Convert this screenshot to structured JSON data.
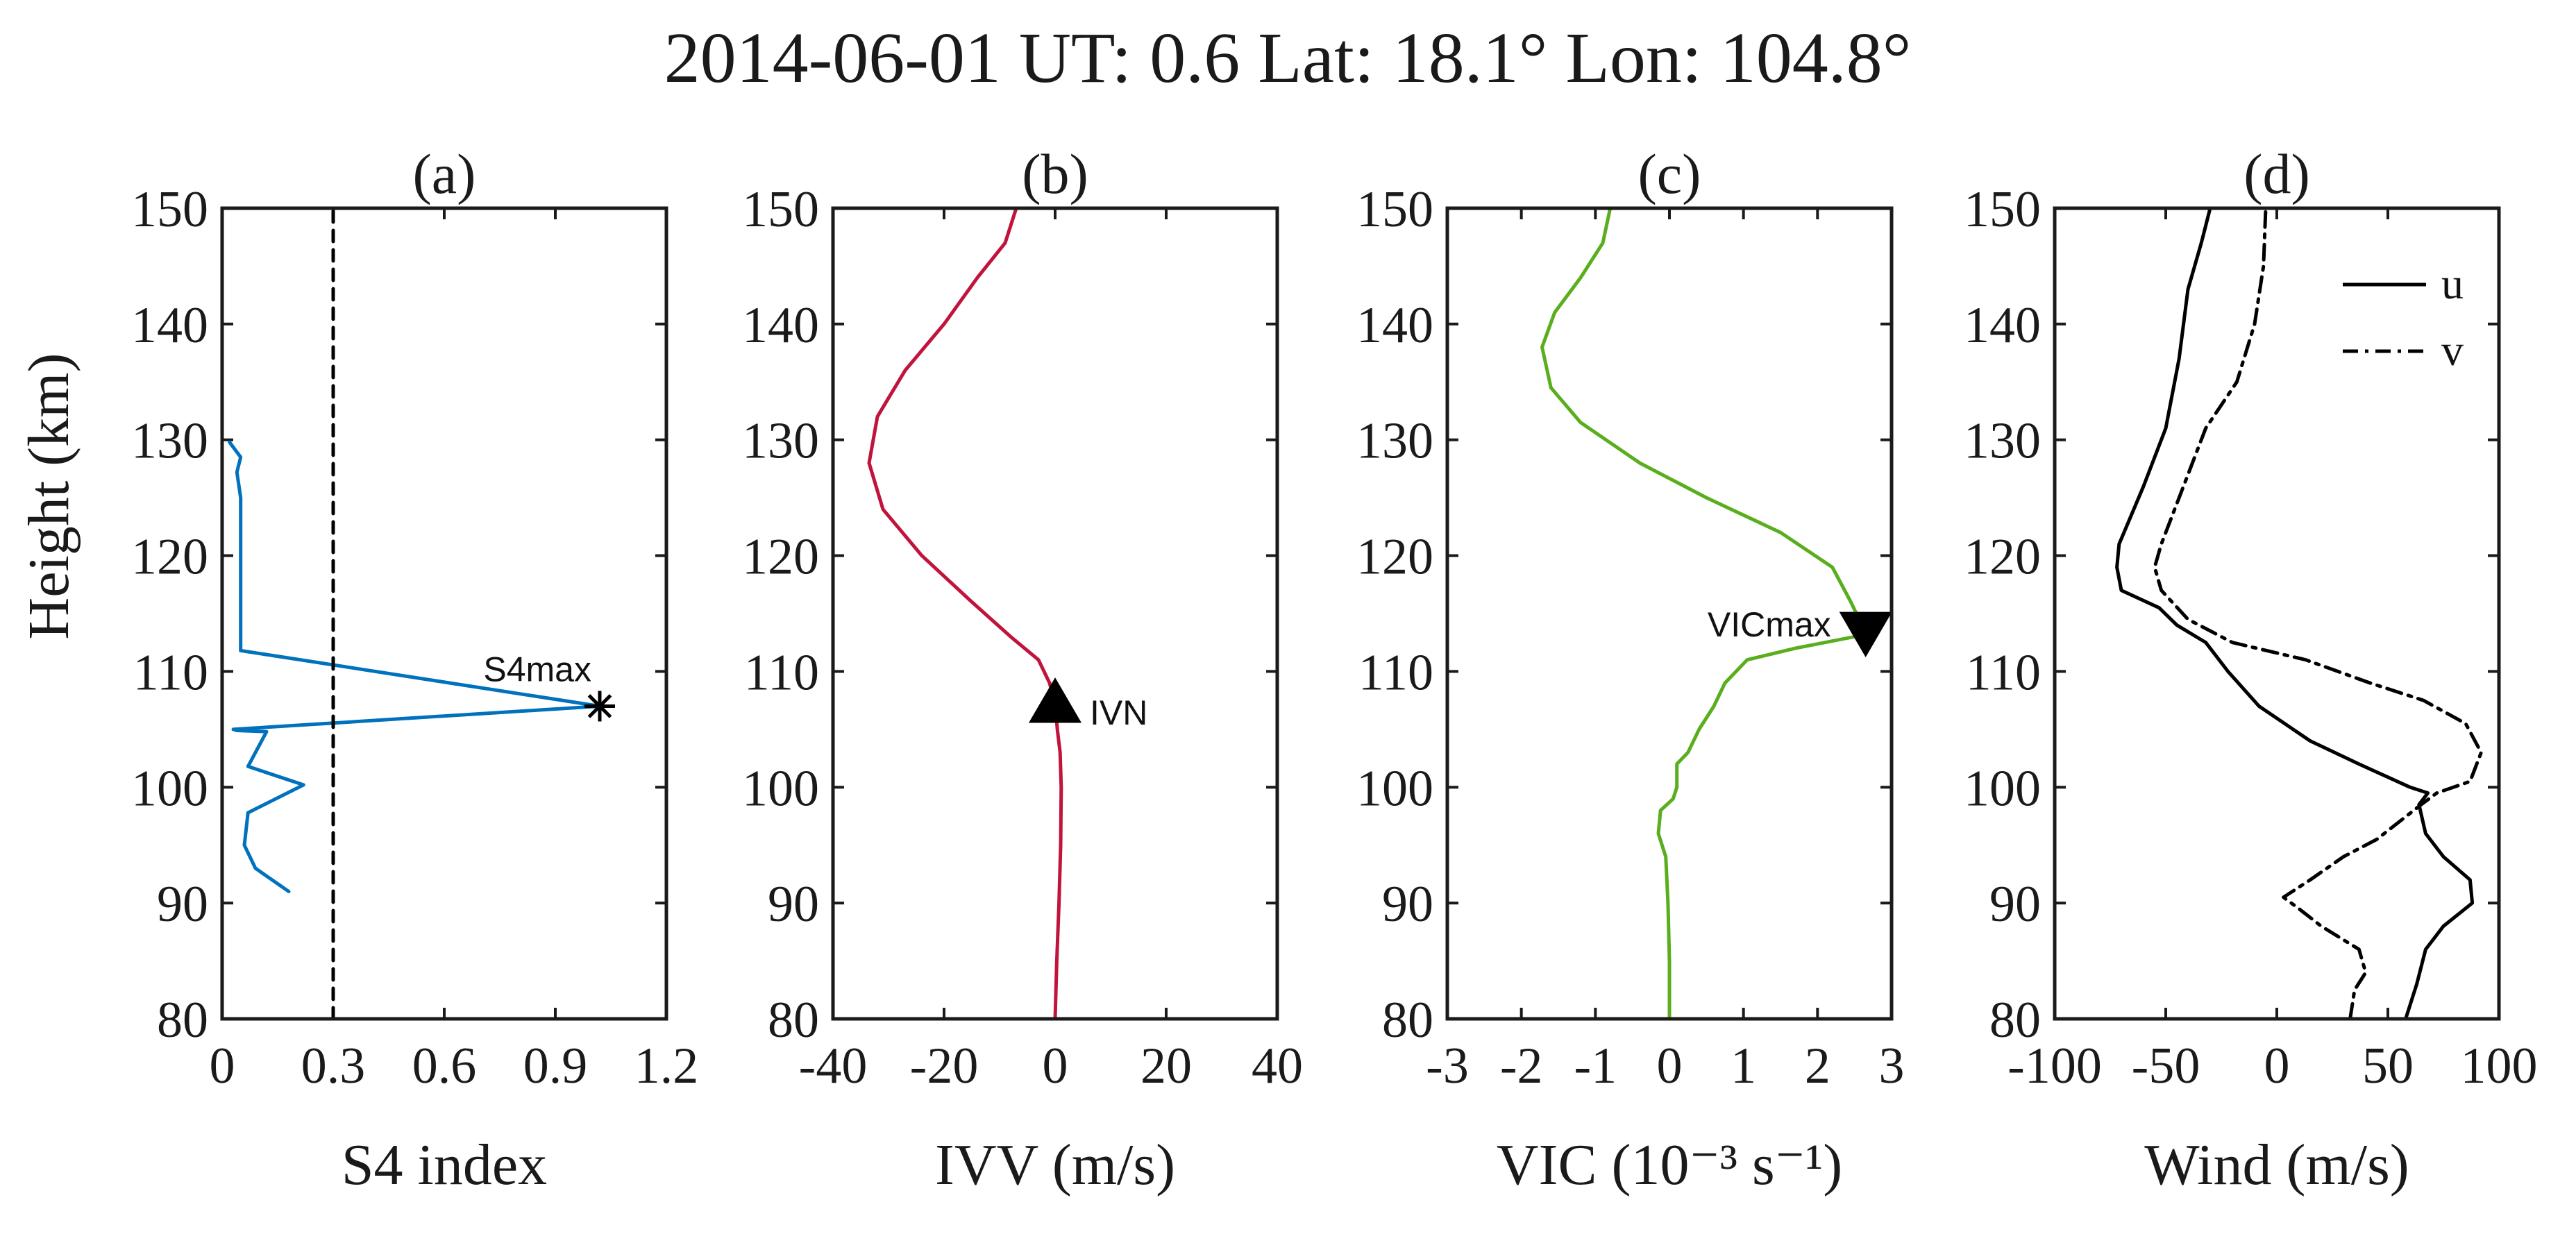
{
  "chart_data": {
    "type": "line",
    "title": "2014-06-01 UT: 0.6 Lat: 18.1° Lon: 104.8°",
    "shared_ylabel": "Height (km)",
    "ylim": [
      80,
      150
    ],
    "yticks": [
      80,
      90,
      100,
      110,
      120,
      130,
      140,
      150
    ],
    "ytick_labels": [
      "80",
      "90",
      "100",
      "110",
      "120",
      "130",
      "140",
      "150"
    ],
    "panels": [
      {
        "id": "a",
        "panel_title": "(a)",
        "xlabel": "S4 index",
        "xlim": [
          0,
          1.2
        ],
        "xticks": [
          0,
          0.3,
          0.6,
          0.9,
          1.2
        ],
        "xtick_labels": [
          "0",
          "0.3",
          "0.6",
          "0.9",
          "1.2"
        ],
        "series": [
          {
            "name": "S4",
            "color": "#0072BD",
            "style": "solid",
            "points": [
              [
                0.02,
                129.8
              ],
              [
                0.05,
                128.5
              ],
              [
                0.04,
                127.2
              ],
              [
                0.05,
                125.0
              ],
              [
                0.05,
                120.0
              ],
              [
                0.05,
                115.0
              ],
              [
                0.05,
                111.8
              ],
              [
                1.02,
                107.0
              ],
              [
                0.03,
                105.0
              ],
              [
                0.04,
                104.9
              ],
              [
                0.12,
                104.8
              ],
              [
                0.07,
                101.8
              ],
              [
                0.22,
                100.2
              ],
              [
                0.07,
                97.8
              ],
              [
                0.06,
                95.0
              ],
              [
                0.09,
                93.0
              ],
              [
                0.18,
                91.0
              ]
            ]
          },
          {
            "name": "threshold",
            "color": "#000000",
            "style": "dashed",
            "points": [
              [
                0.3,
                80
              ],
              [
                0.3,
                150
              ]
            ]
          }
        ],
        "markers": [
          {
            "label": "S4max",
            "x": 1.02,
            "y": 107.0,
            "shape": "asterisk"
          }
        ]
      },
      {
        "id": "b",
        "panel_title": "(b)",
        "xlabel": "IVV (m/s)",
        "xlim": [
          -40,
          40
        ],
        "xticks": [
          -40,
          -20,
          0,
          20,
          40
        ],
        "xtick_labels": [
          "-40",
          "-20",
          "0",
          "20",
          "40"
        ],
        "series": [
          {
            "name": "IVV",
            "color": "#C0143C",
            "style": "solid",
            "points": [
              [
                0,
                80
              ],
              [
                0.3,
                85
              ],
              [
                0.7,
                90
              ],
              [
                1,
                95
              ],
              [
                1.1,
                100
              ],
              [
                0.9,
                103
              ],
              [
                0.4,
                105
              ],
              [
                0,
                107.2
              ],
              [
                -1,
                109
              ],
              [
                -3,
                111
              ],
              [
                -8,
                113
              ],
              [
                -15,
                116
              ],
              [
                -24,
                120
              ],
              [
                -31,
                124
              ],
              [
                -33.5,
                128
              ],
              [
                -32,
                132
              ],
              [
                -27,
                136
              ],
              [
                -20,
                140
              ],
              [
                -14,
                144
              ],
              [
                -9,
                147
              ],
              [
                -7,
                150
              ]
            ]
          }
        ],
        "markers": [
          {
            "label": "IVN",
            "x": 0,
            "y": 107.2,
            "shape": "triangle-up"
          }
        ]
      },
      {
        "id": "c",
        "panel_title": "(c)",
        "xlabel": "VIC (10⁻³ s⁻¹)",
        "xlim": [
          -3,
          3
        ],
        "xticks": [
          -3,
          -2,
          -1,
          0,
          1,
          2,
          3
        ],
        "xtick_labels": [
          "-3",
          "-2",
          "-1",
          "0",
          "1",
          "2",
          "3"
        ],
        "series": [
          {
            "name": "VIC",
            "color": "#5AAE1E",
            "style": "solid",
            "points": [
              [
                0,
                80
              ],
              [
                0,
                85
              ],
              [
                -0.02,
                90
              ],
              [
                -0.05,
                94
              ],
              [
                -0.15,
                96
              ],
              [
                -0.12,
                98
              ],
              [
                0.05,
                99
              ],
              [
                0.1,
                100
              ],
              [
                0.1,
                102
              ],
              [
                0.25,
                103
              ],
              [
                0.4,
                105
              ],
              [
                0.6,
                107
              ],
              [
                0.75,
                109
              ],
              [
                1.05,
                111
              ],
              [
                1.7,
                112
              ],
              [
                2.5,
                113
              ],
              [
                2.6,
                114
              ],
              [
                2.45,
                116
              ],
              [
                2.2,
                119
              ],
              [
                1.5,
                122
              ],
              [
                0.5,
                125
              ],
              [
                -0.4,
                128
              ],
              [
                -1.2,
                131.5
              ],
              [
                -1.6,
                134.5
              ],
              [
                -1.72,
                138
              ],
              [
                -1.55,
                141
              ],
              [
                -1.2,
                144
              ],
              [
                -0.9,
                147
              ],
              [
                -0.8,
                150
              ]
            ]
          }
        ],
        "markers": [
          {
            "label": "VICmax",
            "x": 2.65,
            "y": 113.5,
            "shape": "triangle-down"
          }
        ]
      },
      {
        "id": "d",
        "panel_title": "(d)",
        "xlabel": "Wind (m/s)",
        "xlim": [
          -100,
          100
        ],
        "xticks": [
          -100,
          -50,
          0,
          50,
          100
        ],
        "xtick_labels": [
          "-100",
          "-50",
          "0",
          "50",
          "100"
        ],
        "legend": {
          "position": "top-right",
          "entries": [
            "u",
            "v"
          ]
        },
        "series": [
          {
            "name": "u",
            "color": "#000000",
            "style": "solid",
            "points": [
              [
                58,
                80
              ],
              [
                63,
                83
              ],
              [
                67,
                86
              ],
              [
                75,
                88
              ],
              [
                88,
                90
              ],
              [
                87,
                92
              ],
              [
                75,
                94
              ],
              [
                67,
                96
              ],
              [
                64,
                98.5
              ],
              [
                68,
                99.5
              ],
              [
                60,
                100
              ],
              [
                37,
                102
              ],
              [
                15,
                104
              ],
              [
                -8,
                107
              ],
              [
                -22,
                110
              ],
              [
                -32,
                112.5
              ],
              [
                -45,
                114
              ],
              [
                -53,
                115.5
              ],
              [
                -70,
                117
              ],
              [
                -72,
                119
              ],
              [
                -71,
                121
              ],
              [
                -60,
                126
              ],
              [
                -50,
                131
              ],
              [
                -44,
                137
              ],
              [
                -40,
                143
              ],
              [
                -34,
                147
              ],
              [
                -30,
                150
              ]
            ]
          },
          {
            "name": "v",
            "color": "#000000",
            "style": "dashdot",
            "points": [
              [
                33,
                80
              ],
              [
                35,
                82.5
              ],
              [
                40,
                84
              ],
              [
                37,
                86
              ],
              [
                20,
                88
              ],
              [
                10,
                89.5
              ],
              [
                3,
                90.5
              ],
              [
                15,
                92
              ],
              [
                30,
                94
              ],
              [
                45,
                95.5
              ],
              [
                55,
                97
              ],
              [
                65,
                98.5
              ],
              [
                72,
                99.5
              ],
              [
                87,
                100.5
              ],
              [
                92,
                103
              ],
              [
                85,
                105.5
              ],
              [
                66,
                107.5
              ],
              [
                42,
                109
              ],
              [
                13,
                111
              ],
              [
                -20,
                112.5
              ],
              [
                -40,
                114.5
              ],
              [
                -52,
                117
              ],
              [
                -55,
                119
              ],
              [
                -52,
                121
              ],
              [
                -42,
                126
              ],
              [
                -32,
                131
              ],
              [
                -18,
                135
              ],
              [
                -10,
                140
              ],
              [
                -6,
                145
              ],
              [
                -5,
                150
              ]
            ]
          }
        ]
      }
    ]
  }
}
